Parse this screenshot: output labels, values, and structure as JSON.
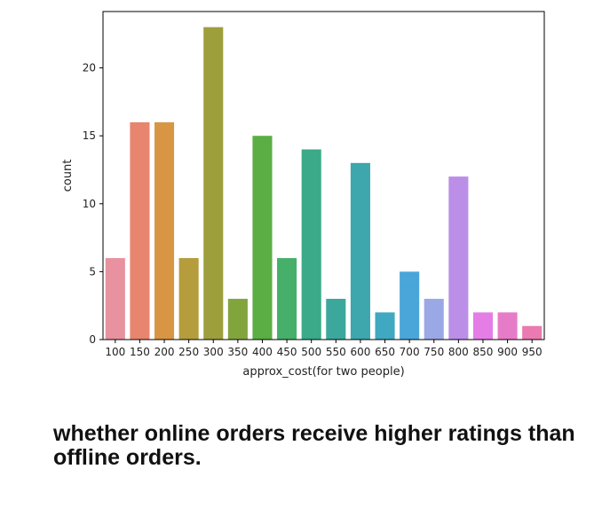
{
  "chart_data": {
    "type": "bar",
    "categories": [
      "100",
      "150",
      "200",
      "250",
      "300",
      "350",
      "400",
      "450",
      "500",
      "550",
      "600",
      "650",
      "700",
      "750",
      "800",
      "850",
      "900",
      "950"
    ],
    "values": [
      6,
      16,
      16,
      6,
      23,
      3,
      15,
      6,
      14,
      3,
      13,
      2,
      5,
      3,
      12,
      2,
      2,
      1
    ],
    "colors": [
      "#e8919f",
      "#e8856e",
      "#d89644",
      "#b59c3c",
      "#9d9e3c",
      "#82a43d",
      "#5aae44",
      "#46b06a",
      "#3aaa88",
      "#3ca89c",
      "#3ea6ad",
      "#40a8c0",
      "#4aa6d9",
      "#9aa8e6",
      "#bb8ee7",
      "#e47de6",
      "#e67cc8",
      "#ea7ab0"
    ],
    "xlabel": "approx_cost(for two people)",
    "ylabel": "count",
    "yticks": [
      0,
      5,
      10,
      15,
      20
    ],
    "ylim": [
      0,
      24.15
    ],
    "grid": false,
    "legend": "none"
  },
  "caption": "whether online orders receive higher ratings than offline orders."
}
